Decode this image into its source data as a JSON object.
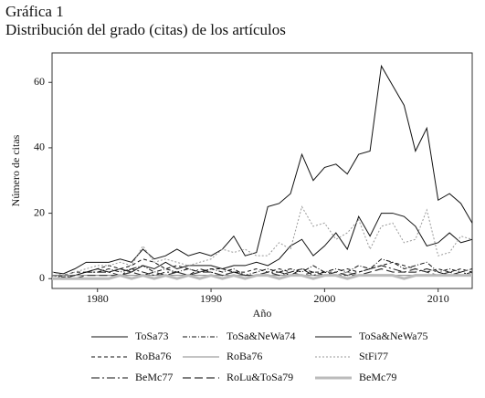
{
  "chart_data": {
    "type": "line",
    "title": "Gráfica 1",
    "subtitle": "Distribución del grado (citas) de los artículos",
    "xlabel": "Año",
    "ylabel": "Número de citas",
    "x": [
      1976,
      1977,
      1978,
      1979,
      1980,
      1981,
      1982,
      1983,
      1984,
      1985,
      1986,
      1987,
      1988,
      1989,
      1990,
      1991,
      1992,
      1993,
      1994,
      1995,
      1996,
      1997,
      1998,
      1999,
      2000,
      2001,
      2002,
      2003,
      2004,
      2005,
      2006,
      2007,
      2008,
      2009,
      2010,
      2011,
      2012,
      2013
    ],
    "xlim": [
      1976,
      2013
    ],
    "xticks": [
      1980,
      1990,
      2000,
      2010
    ],
    "ylim": [
      -3,
      69
    ],
    "yticks": [
      0,
      20,
      40,
      60
    ],
    "series": [
      {
        "name": "ToSa73",
        "color": "#111111",
        "dash": "solid",
        "width": 1,
        "values": [
          2,
          1.5,
          3,
          5,
          5,
          5,
          6,
          5,
          9,
          6,
          7,
          9,
          7,
          8,
          7,
          9,
          13,
          7,
          8,
          22,
          23,
          26,
          38,
          30,
          34,
          35,
          32,
          38,
          39,
          65,
          59,
          53,
          39,
          46,
          24,
          26,
          23,
          17
        ]
      },
      {
        "name": "ToSa&NeWa74",
        "color": "#111111",
        "dash": "dashdot",
        "width": 1,
        "values": [
          1,
          0.5,
          1,
          2,
          2,
          3,
          2,
          3,
          4,
          2,
          3,
          2,
          3,
          2,
          3,
          2,
          3,
          1,
          2,
          3,
          2,
          3,
          2,
          4,
          2,
          3,
          2,
          4,
          3,
          6,
          5,
          3,
          4,
          5,
          2,
          3,
          2,
          3
        ]
      },
      {
        "name": "ToSa&NeWa75",
        "color": "#111111",
        "dash": "solid",
        "width": 1,
        "values": [
          1,
          1,
          1,
          2,
          3,
          2,
          3,
          2,
          4,
          3,
          5,
          3,
          4,
          4,
          4,
          3,
          4,
          4,
          5,
          4,
          6,
          10,
          12,
          7,
          10,
          14,
          9,
          19,
          13,
          20,
          20,
          19,
          16,
          10,
          11,
          14,
          11,
          12
        ]
      },
      {
        "name": "RoBa76",
        "color": "#111111",
        "dash": "dash",
        "width": 1,
        "values": [
          0,
          1,
          2,
          2,
          3,
          4,
          3,
          4,
          6,
          5,
          3,
          4,
          3,
          2,
          3,
          3,
          2,
          2,
          3,
          2,
          3,
          2,
          3,
          2,
          2,
          2,
          3,
          2,
          3,
          4,
          5,
          4,
          3,
          2,
          3,
          2,
          3,
          2
        ]
      },
      {
        "name": "RoBa76",
        "color": "#888888",
        "dash": "solid",
        "width": 1,
        "values": [
          1,
          1,
          1,
          1,
          1,
          1,
          1,
          1,
          1,
          1,
          1,
          1,
          1,
          1,
          1,
          1,
          1,
          1,
          1,
          1,
          1,
          1,
          1,
          1,
          1,
          1,
          2,
          1,
          1,
          1,
          1,
          1,
          1,
          1,
          1,
          1,
          1,
          1
        ]
      },
      {
        "name": "StFi77",
        "color": "#999999",
        "dash": "dot",
        "width": 1,
        "values": [
          2,
          1,
          2,
          3,
          4,
          4,
          5,
          4,
          10,
          5,
          6,
          5,
          4,
          5,
          6,
          9,
          8,
          9,
          7,
          7,
          11,
          9,
          22,
          16,
          17,
          12,
          14,
          18,
          9,
          16,
          17,
          11,
          12,
          21,
          7,
          8,
          13,
          12
        ]
      },
      {
        "name": "BeMc77",
        "color": "#111111",
        "dash": "longdashdot",
        "width": 1,
        "values": [
          0,
          0,
          1,
          2,
          2,
          2,
          1,
          3,
          2,
          1,
          2,
          2,
          1,
          3,
          2,
          1,
          2,
          1,
          1,
          2,
          2,
          1,
          3,
          1,
          2,
          1,
          1,
          2,
          3,
          4,
          3,
          2,
          2,
          3,
          2,
          1,
          2,
          1
        ]
      },
      {
        "name": "RoLu&ToSa79",
        "color": "#333333",
        "dash": "longdash",
        "width": 1.2,
        "values": [
          0,
          0,
          0,
          1,
          1,
          1,
          1,
          2,
          1,
          2,
          1,
          2,
          1,
          2,
          2,
          1,
          2,
          1,
          1,
          2,
          1,
          2,
          1,
          2,
          1,
          2,
          1,
          1,
          2,
          3,
          2,
          2,
          3,
          2,
          1,
          2,
          1,
          2
        ]
      },
      {
        "name": "BeMc79",
        "color": "#bbbbbb",
        "dash": "solid",
        "width": 3,
        "values": [
          0,
          0,
          0,
          0,
          0,
          0,
          1,
          0,
          1,
          0,
          1,
          0,
          1,
          0,
          1,
          0,
          1,
          0,
          1,
          1,
          0,
          1,
          1,
          0,
          1,
          1,
          0,
          1,
          1,
          1,
          1,
          0,
          1,
          1,
          1,
          1,
          1,
          1
        ]
      }
    ]
  }
}
